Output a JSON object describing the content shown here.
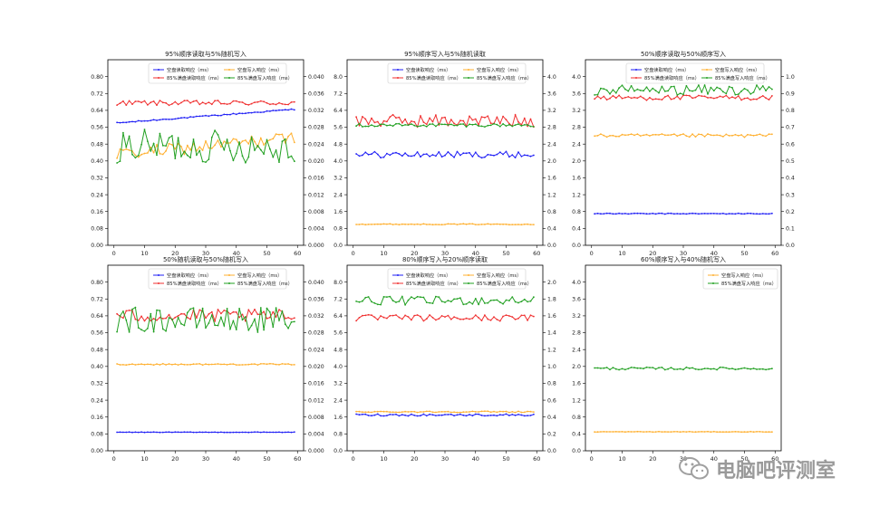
{
  "watermark": {
    "text": "电脑吧评测室",
    "icon": "wechat-icon"
  },
  "series_colors": {
    "blue": "#1f1ff5",
    "red": "#f03030",
    "orange": "#ffb030",
    "green": "#22a022"
  },
  "chart_data": [
    {
      "type": "line",
      "title": "95%顺序读取与5%随机写入",
      "x_ticks": [
        0,
        10,
        20,
        30,
        40,
        50,
        60
      ],
      "xlim": [
        -2,
        62
      ],
      "y_left": {
        "lim": [
          0,
          0.88
        ],
        "ticks": [
          "0.00",
          "0.08",
          "0.16",
          "0.24",
          "0.32",
          "0.40",
          "0.48",
          "0.56",
          "0.64",
          "0.72",
          "0.80"
        ]
      },
      "y_right": {
        "lim": [
          0,
          0.044
        ],
        "ticks": [
          "0.000",
          "0.004",
          "0.008",
          "0.012",
          "0.016",
          "0.020",
          "0.024",
          "0.028",
          "0.032",
          "0.036",
          "0.040"
        ]
      },
      "legend": {
        "placement": "top",
        "entries": [
          "空盘读取响应（ms）",
          "85%满盘读取响应（ms）",
          "空盘写入响应（ms）",
          "85%满盘写入响应（ms）"
        ]
      },
      "series": [
        {
          "name": "空盘读取响应（ms）",
          "color": "blue",
          "axis": "left",
          "gen": "trend",
          "start": 0.58,
          "end": 0.645,
          "noise": 0.003
        },
        {
          "name": "85%满盘读取响应（ms）",
          "color": "red",
          "axis": "left",
          "gen": "noise",
          "base": 0.675,
          "noise": 0.012
        },
        {
          "name": "空盘写入响应（ms）",
          "color": "orange",
          "axis": "right",
          "gen": "trend",
          "start": 0.0215,
          "end": 0.0255,
          "noise": 0.0015
        },
        {
          "name": "85%满盘写入响应（ms）",
          "color": "green",
          "axis": "right",
          "gen": "noise",
          "base": 0.0235,
          "noise": 0.004
        }
      ]
    },
    {
      "type": "line",
      "title": "95%顺序写入与5%随机读取",
      "x_ticks": [
        0,
        10,
        20,
        30,
        40,
        50,
        60
      ],
      "xlim": [
        -2,
        62
      ],
      "y_left": {
        "lim": [
          0,
          8.8
        ],
        "ticks": [
          "0.0",
          "0.8",
          "1.6",
          "2.4",
          "3.2",
          "4.0",
          "4.8",
          "5.6",
          "6.4",
          "7.2",
          "8.0"
        ]
      },
      "y_right": {
        "lim": [
          0,
          4.4
        ],
        "ticks": [
          "0.0",
          "0.4",
          "0.8",
          "1.2",
          "1.6",
          "2.0",
          "2.4",
          "2.8",
          "3.2",
          "3.6",
          "4.0"
        ]
      },
      "legend": {
        "placement": "top",
        "entries": [
          "空盘读取响应（ms）",
          "85%满盘读取响应（ms）",
          "空盘写入响应（ms）",
          "85%满盘写入响应（ms）"
        ]
      },
      "series": [
        {
          "name": "空盘读取响应（ms）",
          "color": "blue",
          "axis": "left",
          "gen": "noise",
          "base": 4.3,
          "noise": 0.15
        },
        {
          "name": "85%满盘读取响应（ms）",
          "color": "red",
          "axis": "left",
          "gen": "noise",
          "base": 5.9,
          "noise": 0.3
        },
        {
          "name": "空盘写入响应（ms）",
          "color": "orange",
          "axis": "right",
          "gen": "noise",
          "base": 0.5,
          "noise": 0.01
        },
        {
          "name": "85%满盘写入响应（ms）",
          "color": "green",
          "axis": "right",
          "gen": "noise",
          "base": 2.85,
          "noise": 0.04
        }
      ]
    },
    {
      "type": "line",
      "title": "50%顺序读取与50%顺序写入",
      "x_ticks": [
        0,
        10,
        20,
        30,
        40,
        50,
        60
      ],
      "xlim": [
        -2,
        62
      ],
      "y_left": {
        "lim": [
          0,
          4.4
        ],
        "ticks": [
          "0.0",
          "0.4",
          "0.8",
          "1.2",
          "1.6",
          "2.0",
          "2.4",
          "2.8",
          "3.2",
          "3.6",
          "4.0"
        ]
      },
      "y_right": {
        "lim": [
          0,
          1.1
        ],
        "ticks": [
          "0.0",
          "0.1",
          "0.2",
          "0.3",
          "0.4",
          "0.5",
          "0.6",
          "0.7",
          "0.8",
          "0.9",
          "1.0"
        ]
      },
      "legend": {
        "placement": "top",
        "entries": [
          "空盘读取响应（ms）",
          "85%满盘读取响应（ms）",
          "空盘写入响应（ms）",
          "85%满盘写入响应（ms）"
        ]
      },
      "series": [
        {
          "name": "空盘读取响应（ms）",
          "color": "blue",
          "axis": "left",
          "gen": "noise",
          "base": 0.75,
          "noise": 0.01
        },
        {
          "name": "85%满盘读取响应（ms）",
          "color": "red",
          "axis": "left",
          "gen": "noise",
          "base": 3.5,
          "noise": 0.06
        },
        {
          "name": "空盘写入响应（ms）",
          "color": "orange",
          "axis": "left",
          "gen": "noise",
          "base": 2.6,
          "noise": 0.04
        },
        {
          "name": "85%满盘写入响应（ms）",
          "color": "green",
          "axis": "right",
          "gen": "noise",
          "base": 0.92,
          "noise": 0.03
        }
      ]
    },
    {
      "type": "line",
      "title": "50%随机读取与50%随机写入",
      "x_ticks": [
        0,
        10,
        20,
        30,
        40,
        50,
        60
      ],
      "xlim": [
        -2,
        62
      ],
      "y_left": {
        "lim": [
          0,
          0.88
        ],
        "ticks": [
          "0.00",
          "0.08",
          "0.16",
          "0.24",
          "0.32",
          "0.40",
          "0.48",
          "0.56",
          "0.64",
          "0.72",
          "0.80"
        ]
      },
      "y_right": {
        "lim": [
          0,
          0.044
        ],
        "ticks": [
          "0.000",
          "0.004",
          "0.008",
          "0.012",
          "0.016",
          "0.020",
          "0.024",
          "0.028",
          "0.032",
          "0.036",
          "0.040"
        ]
      },
      "legend": {
        "placement": "top",
        "entries": [
          "空盘读取响应（ms）",
          "85%满盘读取响应（ms）",
          "空盘写入响应（ms）",
          "85%满盘写入响应（ms）"
        ]
      },
      "series": [
        {
          "name": "空盘读取响应（ms）",
          "color": "blue",
          "axis": "left",
          "gen": "noise",
          "base": 0.088,
          "noise": 0.001
        },
        {
          "name": "85%满盘读取响应（ms）",
          "color": "red",
          "axis": "left",
          "gen": "noise",
          "base": 0.64,
          "noise": 0.03
        },
        {
          "name": "空盘写入响应（ms）",
          "color": "orange",
          "axis": "left",
          "gen": "noise",
          "base": 0.41,
          "noise": 0.003
        },
        {
          "name": "85%满盘写入响应（ms）",
          "color": "green",
          "axis": "right",
          "gen": "noise",
          "base": 0.031,
          "noise": 0.003
        }
      ]
    },
    {
      "type": "line",
      "title": "80%顺序写入与20%顺序读取",
      "x_ticks": [
        0,
        10,
        20,
        30,
        40,
        50,
        60
      ],
      "xlim": [
        -2,
        62
      ],
      "y_left": {
        "lim": [
          0,
          8.8
        ],
        "ticks": [
          "0.0",
          "0.8",
          "1.6",
          "2.4",
          "3.2",
          "4.0",
          "4.8",
          "5.6",
          "6.4",
          "7.2",
          "8.0"
        ]
      },
      "y_right": {
        "lim": [
          0,
          2.2
        ],
        "ticks": [
          "0.0",
          "0.2",
          "0.4",
          "0.6",
          "0.8",
          "1.0",
          "1.2",
          "1.4",
          "1.6",
          "1.8",
          "2.0"
        ]
      },
      "legend": {
        "placement": "top",
        "entries": [
          "空盘读取响应（ms）",
          "85%满盘读取响应（ms）",
          "空盘写入响应（ms）",
          "85%满盘写入响应（ms）"
        ]
      },
      "series": [
        {
          "name": "空盘读取响应（ms）",
          "color": "blue",
          "axis": "left",
          "gen": "noise",
          "base": 1.7,
          "noise": 0.05
        },
        {
          "name": "85%满盘读取响应（ms）",
          "color": "red",
          "axis": "left",
          "gen": "noise",
          "base": 6.3,
          "noise": 0.15
        },
        {
          "name": "空盘写入响应（ms）",
          "color": "orange",
          "axis": "left",
          "gen": "noise",
          "base": 1.85,
          "noise": 0.03
        },
        {
          "name": "85%满盘写入响应（ms）",
          "color": "green",
          "axis": "right",
          "gen": "noise",
          "base": 1.78,
          "noise": 0.05
        }
      ]
    },
    {
      "type": "line",
      "title": "60%顺序写入与40%随机写入",
      "x_ticks": [
        0,
        10,
        20,
        30,
        40,
        50,
        60
      ],
      "xlim": [
        -2,
        62
      ],
      "y_left": {
        "lim": [
          0,
          4.4
        ],
        "ticks": [
          "0.0",
          "0.4",
          "0.8",
          "1.2",
          "1.6",
          "2.0",
          "2.4",
          "2.8",
          "3.2",
          "3.6",
          "4.0"
        ]
      },
      "y_right": null,
      "legend": {
        "placement": "top-right",
        "entries": [
          "空盘写入响应（ms）",
          "85%满盘写入响应（ms）"
        ]
      },
      "series": [
        {
          "name": "空盘写入响应（ms）",
          "color": "orange",
          "axis": "left",
          "gen": "noise",
          "base": 0.45,
          "noise": 0.005
        },
        {
          "name": "85%满盘写入响应（ms）",
          "color": "green",
          "axis": "left",
          "gen": "noise",
          "base": 1.95,
          "noise": 0.03
        }
      ]
    }
  ]
}
